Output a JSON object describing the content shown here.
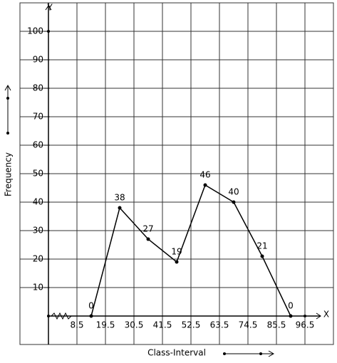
{
  "chart_data": {
    "type": "line",
    "y_axis_name": "Y",
    "x_axis_name": "X",
    "ylabel": "Frequency",
    "xlabel": "Class-Interval",
    "x": [
      14,
      25,
      36,
      47,
      58,
      69,
      80,
      91
    ],
    "values": [
      0,
      38,
      27,
      19,
      46,
      40,
      21,
      0
    ],
    "color": "#000000",
    "xlim": [
      -13.5,
      107.5
    ],
    "xticks": [
      8.5,
      19.5,
      30.5,
      41.5,
      52.5,
      63.5,
      74.5,
      85.5,
      96.5
    ],
    "ylim": [
      -10,
      110
    ],
    "yticks": [
      10,
      20,
      30,
      40,
      50,
      60,
      70,
      80,
      90,
      100
    ],
    "grid": true
  }
}
